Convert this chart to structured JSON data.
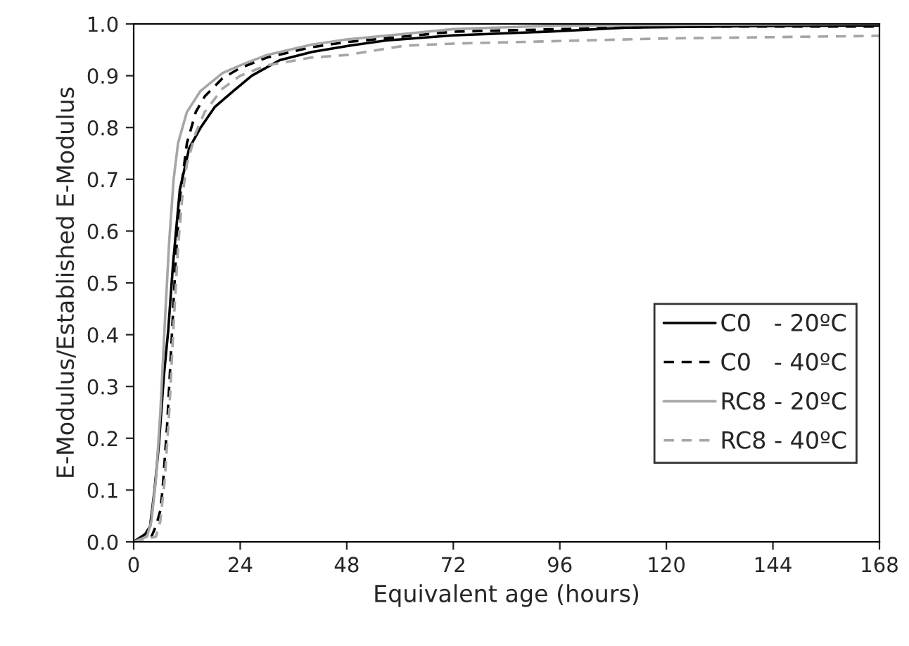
{
  "chart_data": {
    "type": "line",
    "xlabel": "Equivalent age (hours)",
    "ylabel": "E-Modulus/Established E-Modulus",
    "xlim": [
      0,
      168
    ],
    "xticks": [
      0,
      24,
      48,
      72,
      96,
      120,
      144,
      168
    ],
    "ylim": [
      0,
      1.0
    ],
    "yticks": [
      {
        "value": 0,
        "label": "0.0"
      },
      {
        "value": 0.1,
        "label": "0.1"
      },
      {
        "value": 0.2,
        "label": "0.2"
      },
      {
        "value": 0.3,
        "label": "0.3"
      },
      {
        "value": 0.4,
        "label": "0.4"
      },
      {
        "value": 0.5,
        "label": "0.5"
      },
      {
        "value": 0.6,
        "label": "0.6"
      },
      {
        "value": 0.7,
        "label": "0.7"
      },
      {
        "value": 0.8,
        "label": "0.8"
      },
      {
        "value": 0.9,
        "label": "0.9"
      },
      {
        "value": 1.0,
        "label": "1.0"
      }
    ],
    "grid": false,
    "legend": "bottom right",
    "marker": "none",
    "series": [
      {
        "name": "C0   - 20ºC",
        "color": "#000000",
        "line_style": "solid",
        "x": [
          0,
          2.6,
          3.7,
          4.7,
          5.7,
          6.8,
          7.8,
          8.9,
          10.4,
          12.5,
          15.1,
          18.3,
          22.4,
          26.6,
          32.9,
          40.2,
          48.5,
          56.9,
          72,
          96,
          111,
          140,
          168
        ],
        "values": [
          0,
          0.015,
          0.03,
          0.1,
          0.19,
          0.32,
          0.41,
          0.54,
          0.68,
          0.76,
          0.8,
          0.84,
          0.87,
          0.9,
          0.93,
          0.946,
          0.958,
          0.968,
          0.978,
          0.986,
          0.993,
          0.996,
          0.997
        ]
      },
      {
        "name": "C0   - 40ºC",
        "color": "#000000",
        "line_style": "dashed",
        "x": [
          0,
          4,
          5,
          6,
          6.5,
          7.5,
          8.5,
          9.5,
          10.5,
          12,
          14,
          16,
          20,
          24,
          30,
          40,
          48,
          60,
          72,
          96,
          120,
          168
        ],
        "values": [
          0,
          0.01,
          0.03,
          0.06,
          0.1,
          0.22,
          0.38,
          0.55,
          0.67,
          0.77,
          0.83,
          0.86,
          0.895,
          0.915,
          0.935,
          0.955,
          0.965,
          0.975,
          0.985,
          0.99,
          0.995,
          0.995
        ]
      },
      {
        "name": "RC8 - 20ºC",
        "color": "#a6a6a6",
        "line_style": "solid",
        "x": [
          0,
          3,
          4,
          5,
          6,
          7,
          8,
          9,
          10,
          12,
          15,
          20,
          24,
          30,
          40,
          48,
          60,
          72,
          96,
          168
        ],
        "values": [
          0,
          0.01,
          0.04,
          0.12,
          0.25,
          0.42,
          0.58,
          0.7,
          0.77,
          0.83,
          0.87,
          0.905,
          0.92,
          0.94,
          0.96,
          0.97,
          0.98,
          0.99,
          0.997,
          1.0
        ]
      },
      {
        "name": "RC8 - 40ºC",
        "color": "#a6a6a6",
        "line_style": "dashed",
        "x": [
          0,
          5,
          6,
          7,
          8,
          9,
          10,
          11,
          12,
          14,
          16,
          20,
          24,
          30,
          40,
          48,
          61,
          72,
          96,
          120,
          168
        ],
        "values": [
          0,
          0.01,
          0.04,
          0.12,
          0.25,
          0.42,
          0.57,
          0.67,
          0.73,
          0.79,
          0.83,
          0.875,
          0.9,
          0.92,
          0.935,
          0.94,
          0.958,
          0.962,
          0.967,
          0.972,
          0.977
        ]
      }
    ]
  }
}
